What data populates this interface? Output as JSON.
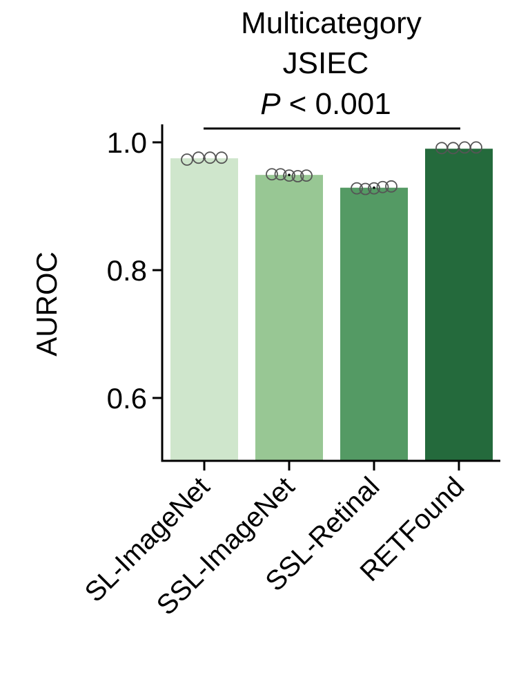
{
  "chart_data": {
    "type": "bar",
    "title_lines": [
      "Multicategory",
      "JSIEC"
    ],
    "significance": {
      "p_symbol": "P",
      "p_text": "< 0.001"
    },
    "ylabel": "AUROC",
    "xlabel": "",
    "ylim": [
      0.5,
      1.025
    ],
    "yticks": [
      0.6,
      0.8,
      1.0
    ],
    "ytick_labels": [
      "0.6",
      "0.8",
      "1.0"
    ],
    "categories": [
      "SL-ImageNet",
      "SSL-ImageNet",
      "SSL-Retinal",
      "RETFound"
    ],
    "values": [
      0.975,
      0.949,
      0.929,
      0.99
    ],
    "colors": [
      "#cfe6cc",
      "#98c794",
      "#549a64",
      "#246a3c"
    ],
    "points": [
      [
        0.973,
        0.976,
        0.976,
        0.976
      ],
      [
        0.95,
        0.95,
        0.948,
        0.947,
        0.948
      ],
      [
        0.928,
        0.927,
        0.928,
        0.93,
        0.931
      ],
      [
        0.991,
        0.991,
        0.992,
        0.992
      ]
    ],
    "grid": false,
    "legend": "none"
  }
}
